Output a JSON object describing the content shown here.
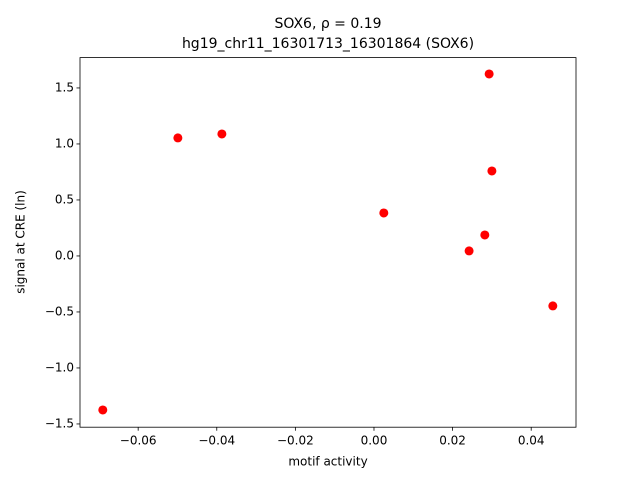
{
  "chart_data": {
    "type": "scatter",
    "title": [
      "SOX6, ρ = 0.19",
      "hg19_chr11_16301713_16301864 (SOX6)"
    ],
    "x_label": "motif activity",
    "y_label": "signal at CRE (ln)",
    "color": "#ff0000",
    "x": [
      0.0293,
      -0.0499,
      -0.0387,
      0.03,
      0.0025,
      0.0282,
      0.0242,
      0.0455,
      -0.069
    ],
    "y": [
      1.625,
      1.054,
      1.089,
      0.759,
      0.384,
      0.1875,
      0.045,
      -0.446,
      -1.375
    ],
    "xlim": [
      -0.0748,
      0.0514
    ],
    "ylim": [
      -1.529,
      1.771
    ],
    "xticks": [
      {
        "value": -0.06,
        "label": "−0.06"
      },
      {
        "value": -0.04,
        "label": "−0.04"
      },
      {
        "value": -0.02,
        "label": "−0.02"
      },
      {
        "value": 0,
        "label": "0.00"
      },
      {
        "value": 0.02,
        "label": "0.02"
      },
      {
        "value": 0.04,
        "label": "0.04"
      }
    ],
    "yticks": [
      {
        "value": -1.5,
        "label": "−1.5"
      },
      {
        "value": -1.0,
        "label": "−1.0"
      },
      {
        "value": -0.5,
        "label": "−0.5"
      },
      {
        "value": 0,
        "label": "0.0"
      },
      {
        "value": 0.5,
        "label": "0.5"
      },
      {
        "value": 1.0,
        "label": "1.0"
      },
      {
        "value": 1.5,
        "label": "1.5"
      }
    ]
  }
}
